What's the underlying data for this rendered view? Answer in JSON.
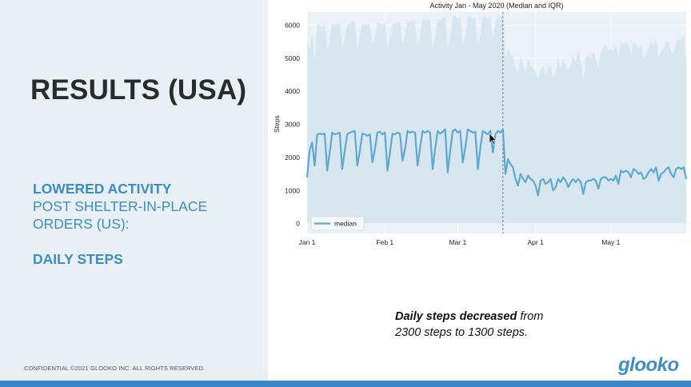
{
  "slide": {
    "title": "RESULTS (USA)",
    "subtitle_line1": "LOWERED ACTIVITY",
    "subtitle_line2": "POST SHELTER-IN-PLACE",
    "subtitle_line3": "ORDERS (US):",
    "subtitle_line4": "DAILY STEPS",
    "footer": "CONFIDENTIAL ©2021 GLOOKO INC. ALL RIGHTS RESERVED.",
    "caption_bold": "Daily steps decreased",
    "caption_rest": " from",
    "caption_line2": "2300 steps to 1300 steps.",
    "logo": "glooko",
    "accent_color": "#3d8cc4",
    "bottom_bar_color": "#3a87c8"
  },
  "chart_data": {
    "type": "line",
    "title": "Activity Jan - May 2020 (Median and IQR)",
    "ylabel": "Steps",
    "xlabel": "",
    "ylim": [
      -300,
      6400
    ],
    "yticks": [
      0,
      1000,
      2000,
      3000,
      4000,
      5000,
      6000
    ],
    "xticks": [
      {
        "label": "Jan 1",
        "day": 0
      },
      {
        "label": "Feb 1",
        "day": 31
      },
      {
        "label": "Mar 1",
        "day": 60
      },
      {
        "label": "Apr 1",
        "day": 91
      },
      {
        "label": "May 1",
        "day": 121
      }
    ],
    "x_range_days": [
      0,
      151
    ],
    "vline_day": 78,
    "legend": {
      "label": "median",
      "location": "lower-left"
    },
    "grid": true,
    "series": [
      {
        "name": "median",
        "color": "#5ea9d1",
        "values": [
          1400,
          2200,
          2450,
          1750,
          2700,
          2720,
          2700,
          2720,
          1600,
          2150,
          2750,
          2700,
          2720,
          2750,
          1650,
          2200,
          2700,
          2750,
          2780,
          2800,
          1750,
          2200,
          2720,
          2700,
          2650,
          2700,
          1850,
          2250,
          2750,
          2780,
          2700,
          2750,
          1600,
          2150,
          2720,
          2700,
          2750,
          2720,
          1900,
          2250,
          2800,
          2750,
          2780,
          2750,
          1750,
          2300,
          2800,
          2750,
          2800,
          2750,
          1650,
          2250,
          2800,
          2720,
          2780,
          2850,
          1550,
          2200,
          2800,
          2850,
          2750,
          2800,
          1850,
          2300,
          2850,
          2800,
          2750,
          2780,
          1650,
          2300,
          2800,
          2750,
          2700,
          2800,
          2150,
          2700,
          2800,
          2750,
          2850,
          1500,
          1950,
          1800,
          1700,
          1350,
          1150,
          1500,
          1350,
          1250,
          1450,
          1350,
          1300,
          1150,
          850,
          1300,
          1350,
          1200,
          1250,
          1350,
          1000,
          1100,
          1350,
          1250,
          1400,
          1300,
          1100,
          1250,
          1350,
          1250,
          1350,
          1250,
          900,
          1250,
          1300,
          1300,
          1350,
          1300,
          1050,
          1350,
          1400,
          1400,
          1300,
          1350,
          1300,
          1450,
          1200,
          1600,
          1550,
          1600,
          1550,
          1400,
          1650,
          1600,
          1500,
          1550,
          1350,
          1400,
          1550,
          1650,
          1550,
          1700,
          1300,
          1500,
          1550,
          1650,
          1700,
          1500,
          1400,
          1650,
          1700,
          1650,
          1700,
          1350
        ],
        "upper": [
          5500,
          5300,
          5800,
          4900,
          6050,
          6000,
          5950,
          6050,
          5200,
          5600,
          6050,
          6000,
          6050,
          6050,
          5300,
          5600,
          6000,
          6050,
          6100,
          6100,
          5250,
          5700,
          6050,
          6000,
          6000,
          6050,
          5400,
          5650,
          6100,
          6050,
          6000,
          6100,
          5300,
          5600,
          6050,
          6050,
          6100,
          6100,
          5400,
          5700,
          6150,
          6100,
          6150,
          6100,
          5350,
          5700,
          6200,
          6150,
          6200,
          6150,
          5300,
          5650,
          6200,
          6150,
          6200,
          6250,
          5300,
          5650,
          6250,
          6300,
          6200,
          6250,
          5400,
          5700,
          6300,
          6250,
          6200,
          6250,
          5400,
          5700,
          6300,
          6250,
          6200,
          6300,
          5600,
          6100,
          6300,
          6250,
          6300,
          5000,
          5300,
          5100,
          5050,
          4700,
          4500,
          5050,
          4850,
          4550,
          5000,
          4800,
          4700,
          4600,
          4300,
          4650,
          4800,
          4500,
          4700,
          4800,
          4400,
          4600,
          5000,
          4700,
          5000,
          4800,
          4600,
          4800,
          5100,
          4900,
          5300,
          4900,
          4300,
          5000,
          5100,
          5000,
          5200,
          5000,
          4700,
          5200,
          5300,
          5400,
          5200,
          5300,
          5200,
          5400,
          5000,
          5500,
          5400,
          5500,
          5400,
          5100,
          5500,
          5400,
          5300,
          5400,
          5000,
          5100,
          5300,
          5500,
          5400,
          5600,
          5000,
          5200,
          5300,
          5500,
          5500,
          5200,
          5100,
          5500,
          5600,
          5500,
          5700,
          5000
        ]
      }
    ]
  }
}
